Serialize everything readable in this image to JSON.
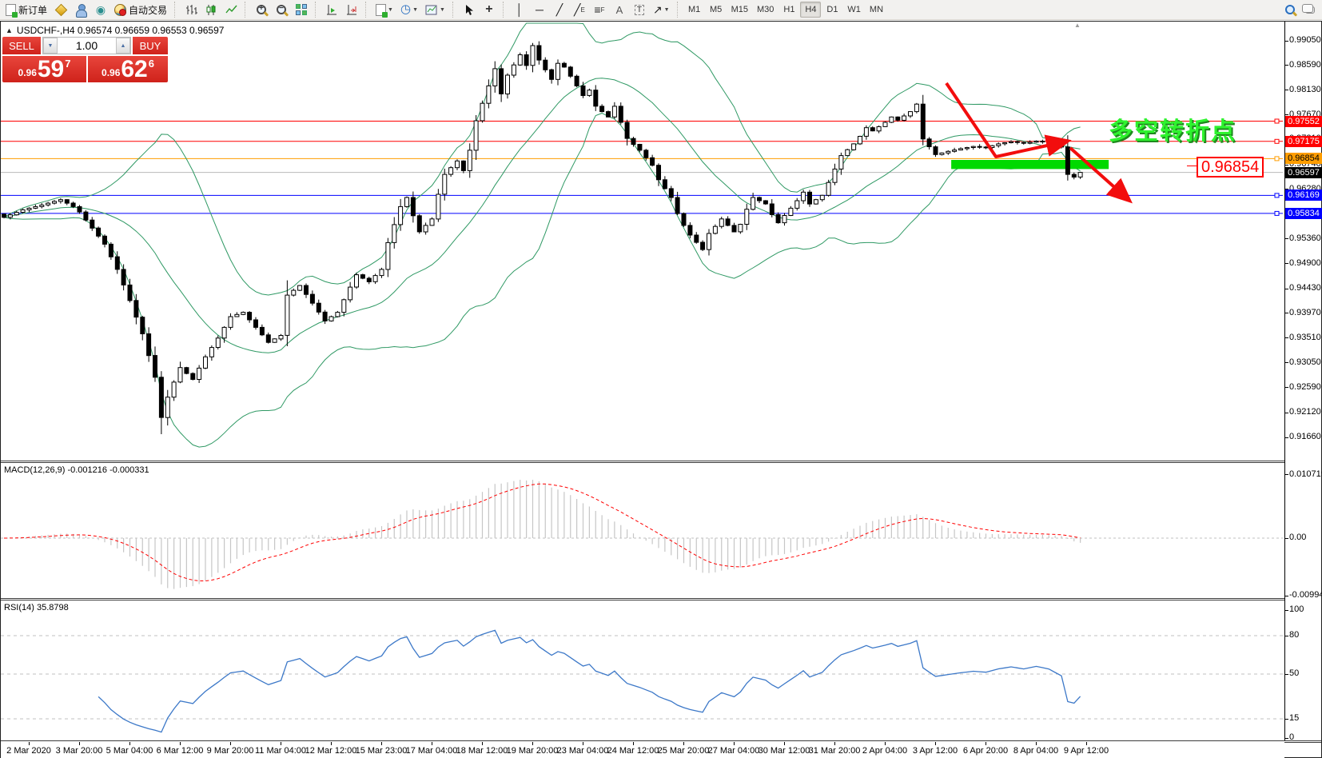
{
  "toolbar": {
    "new_order_label": "新订单",
    "autotrade_label": "自动交易",
    "timeframes": [
      "M1",
      "M5",
      "M15",
      "M30",
      "H1",
      "H4",
      "D1",
      "W1",
      "MN"
    ],
    "active_timeframe": "H4",
    "icon_glyphs": {
      "alerts": "◉",
      "clock": "◷",
      "caret": "▼",
      "spin_up": "▲",
      "spin_down": "▼",
      "crosshair": "+",
      "vline": "│",
      "hline": "─",
      "trendline": "╱",
      "channel": "╱",
      "channel_sub": "E",
      "fibo": "≡",
      "fibo_sub": "F",
      "text_tool": "A",
      "label_tool": "T",
      "arrows_tool": "↗",
      "title_triangle": "▲",
      "collapse_triangle": "▲"
    }
  },
  "title": {
    "text": "USDCHF-,H4  0.96574 0.96659 0.96553 0.96597"
  },
  "one_click": {
    "sell_label": "SELL",
    "buy_label": "BUY",
    "volume": "1.00",
    "sell_price_main": "0.96",
    "sell_price_pips": "59",
    "sell_price_pt": "7",
    "buy_price_main": "0.96",
    "buy_price_pips": "62",
    "buy_price_pt": "6"
  },
  "annotations": {
    "turning_point_text": "多空转折点",
    "price_callout": "0.96854",
    "highlight_color": "#00d900",
    "arrow_color": "#f20d0d",
    "text_color": "#2ef32e"
  },
  "chart_data": {
    "type": "candlestick",
    "symbol": "USDCHF-",
    "period": "H4",
    "last_ohlc": {
      "open": 0.96574,
      "high": 0.96659,
      "low": 0.96553,
      "close": 0.96597
    },
    "bid": "0.96597",
    "ask": "0.96626",
    "bars_total": 172,
    "y_axis_ticks": [
      0.9905,
      0.9859,
      0.9813,
      0.9767,
      0.9721,
      0.9674,
      0.9628,
      0.9582,
      0.9536,
      0.949,
      0.9443,
      0.9397,
      0.9351,
      0.9305,
      0.9259,
      0.9212,
      0.9166
    ],
    "x_axis_labels": [
      "2 Mar 2020",
      "3 Mar 20:00",
      "5 Mar 04:00",
      "6 Mar 12:00",
      "9 Mar 20:00",
      "11 Mar 04:00",
      "12 Mar 12:00",
      "15 Mar 23:00",
      "17 Mar 04:00",
      "18 Mar 12:00",
      "19 Mar 20:00",
      "23 Mar 04:00",
      "24 Mar 12:00",
      "25 Mar 20:00",
      "27 Mar 04:00",
      "30 Mar 12:00",
      "31 Mar 20:00",
      "2 Apr 04:00",
      "3 Apr 12:00",
      "6 Apr 20:00",
      "8 Apr 04:00",
      "9 Apr 12:00"
    ],
    "price_path_anchors": [
      [
        0,
        0.9576
      ],
      [
        3,
        0.959
      ],
      [
        6,
        0.9599
      ],
      [
        9,
        0.9609
      ],
      [
        11,
        0.9596
      ],
      [
        12,
        0.9586
      ],
      [
        14,
        0.9556
      ],
      [
        16,
        0.9526
      ],
      [
        18,
        0.9479
      ],
      [
        20,
        0.9421
      ],
      [
        22,
        0.9359
      ],
      [
        24,
        0.9278
      ],
      [
        25,
        0.9203
      ],
      [
        26,
        0.9241
      ],
      [
        27,
        0.9269
      ],
      [
        28,
        0.9296
      ],
      [
        30,
        0.9274
      ],
      [
        32,
        0.9316
      ],
      [
        34,
        0.9351
      ],
      [
        36,
        0.9391
      ],
      [
        38,
        0.9399
      ],
      [
        40,
        0.9371
      ],
      [
        42,
        0.9343
      ],
      [
        44,
        0.9356
      ],
      [
        45,
        0.9431
      ],
      [
        47,
        0.9449
      ],
      [
        49,
        0.9416
      ],
      [
        51,
        0.9383
      ],
      [
        53,
        0.9399
      ],
      [
        55,
        0.9446
      ],
      [
        56,
        0.9469
      ],
      [
        58,
        0.9456
      ],
      [
        60,
        0.9479
      ],
      [
        61,
        0.9529
      ],
      [
        63,
        0.9596
      ],
      [
        64,
        0.9613
      ],
      [
        65,
        0.9579
      ],
      [
        66,
        0.9549
      ],
      [
        68,
        0.9573
      ],
      [
        69,
        0.9619
      ],
      [
        70,
        0.9656
      ],
      [
        72,
        0.9681
      ],
      [
        73,
        0.9663
      ],
      [
        74,
        0.9701
      ],
      [
        75,
        0.9756
      ],
      [
        77,
        0.9821
      ],
      [
        78,
        0.9853
      ],
      [
        79,
        0.9806
      ],
      [
        80,
        0.9841
      ],
      [
        82,
        0.9879
      ],
      [
        83,
        0.9859
      ],
      [
        84,
        0.9896
      ],
      [
        85,
        0.9869
      ],
      [
        87,
        0.9833
      ],
      [
        88,
        0.9863
      ],
      [
        89,
        0.9856
      ],
      [
        90,
        0.9839
      ],
      [
        92,
        0.9803
      ],
      [
        93,
        0.9813
      ],
      [
        94,
        0.9783
      ],
      [
        96,
        0.9763
      ],
      [
        97,
        0.9783
      ],
      [
        98,
        0.9753
      ],
      [
        99,
        0.9723
      ],
      [
        101,
        0.9701
      ],
      [
        103,
        0.9673
      ],
      [
        104,
        0.9646
      ],
      [
        106,
        0.9613
      ],
      [
        107,
        0.9583
      ],
      [
        108,
        0.9561
      ],
      [
        109,
        0.9543
      ],
      [
        111,
        0.9516
      ],
      [
        112,
        0.9546
      ],
      [
        113,
        0.9559
      ],
      [
        114,
        0.9573
      ],
      [
        116,
        0.9549
      ],
      [
        117,
        0.9563
      ],
      [
        118,
        0.9591
      ],
      [
        119,
        0.9613
      ],
      [
        121,
        0.9601
      ],
      [
        122,
        0.9581
      ],
      [
        123,
        0.9566
      ],
      [
        125,
        0.9593
      ],
      [
        126,
        0.9607
      ],
      [
        127,
        0.9623
      ],
      [
        128,
        0.9601
      ],
      [
        130,
        0.9617
      ],
      [
        131,
        0.9641
      ],
      [
        132,
        0.9666
      ],
      [
        133,
        0.9691
      ],
      [
        135,
        0.9713
      ],
      [
        136,
        0.9727
      ],
      [
        137,
        0.9743
      ],
      [
        138,
        0.9737
      ],
      [
        140,
        0.9753
      ],
      [
        141,
        0.9763
      ],
      [
        142,
        0.9757
      ],
      [
        144,
        0.9773
      ],
      [
        145,
        0.9787
      ],
      [
        146,
        0.9722
      ],
      [
        148,
        0.9693
      ],
      [
        150,
        0.9699
      ],
      [
        152,
        0.9704
      ],
      [
        154,
        0.9708
      ],
      [
        156,
        0.9706
      ],
      [
        158,
        0.9713
      ],
      [
        160,
        0.9717
      ],
      [
        162,
        0.9714
      ],
      [
        164,
        0.9718
      ],
      [
        166,
        0.9715
      ],
      [
        167,
        0.9711
      ],
      [
        168,
        0.9707
      ],
      [
        169,
        0.9656
      ],
      [
        170,
        0.9651
      ],
      [
        171,
        0.96597
      ]
    ],
    "levels": [
      {
        "price": 0.97552,
        "color": "#ff0000",
        "label": "0.97552",
        "label_bg": "#ff0000",
        "label_fg": "#ffffff"
      },
      {
        "price": 0.97175,
        "color": "#ff0000",
        "label": "0.97175",
        "label_bg": "#ff0000",
        "label_fg": "#ffffff"
      },
      {
        "price": 0.96854,
        "color": "#ff9d00",
        "label": "0.96854",
        "label_bg": "#ff9d00",
        "label_fg": "#000000"
      },
      {
        "price": 0.96169,
        "color": "#0000ff",
        "label": "0.96169",
        "label_bg": "#0000ff",
        "label_fg": "#ffffff"
      },
      {
        "price": 0.95834,
        "color": "#0000ff",
        "label": "0.95834",
        "label_bg": "#0000ff",
        "label_fg": "#ffffff"
      }
    ],
    "current_price": {
      "value": 0.96597,
      "label": "0.96597",
      "line_color": "#b9b9b9",
      "label_bg": "#000000",
      "label_fg": "#ffffff"
    },
    "bollinger": {
      "period": 20,
      "deviations": 2,
      "color": "#2f9964"
    },
    "macd": {
      "label_text": "MACD(12,26,9) -0.001216 -0.000331",
      "label": "MACD(12,26,9)",
      "value_main": -0.001216,
      "value_signal": -0.000331,
      "axis_ticks": [
        "0.010719",
        "0.00",
        "-0.009944"
      ],
      "histogram_color": "#c6c6c6",
      "signal_color": "#ff0000"
    },
    "rsi": {
      "label_text": "RSI(14) 35.8798",
      "label": "RSI(14)",
      "value": 35.8798,
      "axis_ticks": [
        "100",
        "80",
        "50",
        "15",
        "0"
      ],
      "level_lines": [
        80,
        50,
        15
      ],
      "color": "#3c78c8"
    },
    "highlight_bar": {
      "price_top": 0.9683,
      "price_bottom": 0.9666,
      "bar_start": 151,
      "bar_end": 175
    }
  }
}
